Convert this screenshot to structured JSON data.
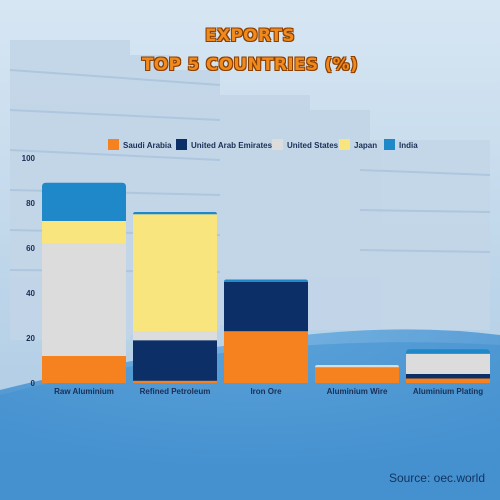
{
  "title_line1": "EXPORTS",
  "title_line2": "TOP 5 COUNTRIES (%)",
  "source": "Source: oec.world",
  "chart_data": {
    "type": "bar",
    "stacked": true,
    "legend_position": "top",
    "grid": false,
    "ylim": [
      0,
      100
    ],
    "yticks": [
      0,
      20,
      40,
      60,
      80,
      100
    ],
    "categories": [
      "Raw Aluminium",
      "Refined Petroleum",
      "Iron Ore",
      "Aluminium Wire",
      "Aluminium Plating"
    ],
    "series": [
      {
        "name": "Saudi Arabia",
        "color": "#F5821F",
        "values": [
          12,
          1,
          23,
          7,
          2
        ]
      },
      {
        "name": "United Arab Emirates",
        "color": "#0B2F66",
        "values": [
          0,
          18,
          22,
          0,
          2
        ]
      },
      {
        "name": "United States",
        "color": "#DCDCDC",
        "values": [
          50,
          4,
          0,
          1,
          9
        ]
      },
      {
        "name": "Japan",
        "color": "#F8E57D",
        "values": [
          10,
          52,
          0,
          0,
          0
        ]
      },
      {
        "name": "India",
        "color": "#1E88C8",
        "values": [
          17,
          1,
          1,
          0,
          2
        ]
      }
    ]
  }
}
